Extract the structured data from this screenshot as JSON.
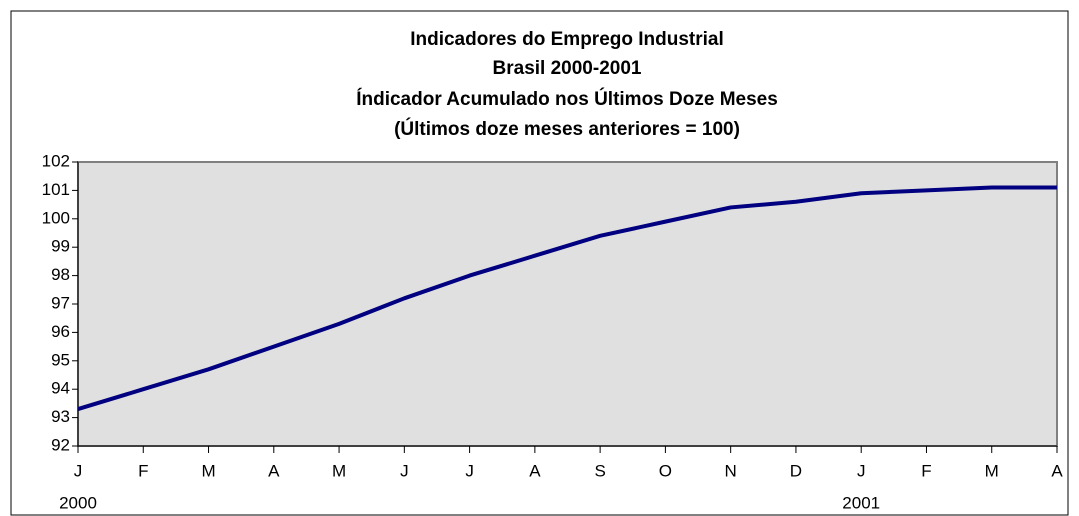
{
  "chart_data": {
    "type": "line",
    "title": [
      "Indicadores do Emprego Industrial",
      "Brasil 2000-2001",
      "Índicador Acumulado nos Últimos Doze Meses",
      "(Últimos doze meses anteriores = 100)"
    ],
    "categories": [
      "J",
      "F",
      "M",
      "A",
      "M",
      "J",
      "J",
      "A",
      "S",
      "O",
      "N",
      "D",
      "J",
      "F",
      "M",
      "A"
    ],
    "year_labels": [
      "2000",
      null,
      null,
      null,
      null,
      null,
      null,
      null,
      null,
      null,
      null,
      null,
      "2001",
      null,
      null,
      null
    ],
    "series": [
      {
        "color": "#000080",
        "values": [
          93.3,
          94.0,
          94.7,
          95.5,
          96.3,
          97.2,
          98.0,
          98.7,
          99.4,
          99.9,
          100.4,
          100.6,
          100.9,
          101.0,
          101.1,
          101.1
        ]
      }
    ],
    "ylim": [
      92,
      102
    ],
    "yticks": [
      92,
      93,
      94,
      95,
      96,
      97,
      98,
      99,
      100,
      101,
      102
    ],
    "plot_background": "#e0e0e0"
  }
}
